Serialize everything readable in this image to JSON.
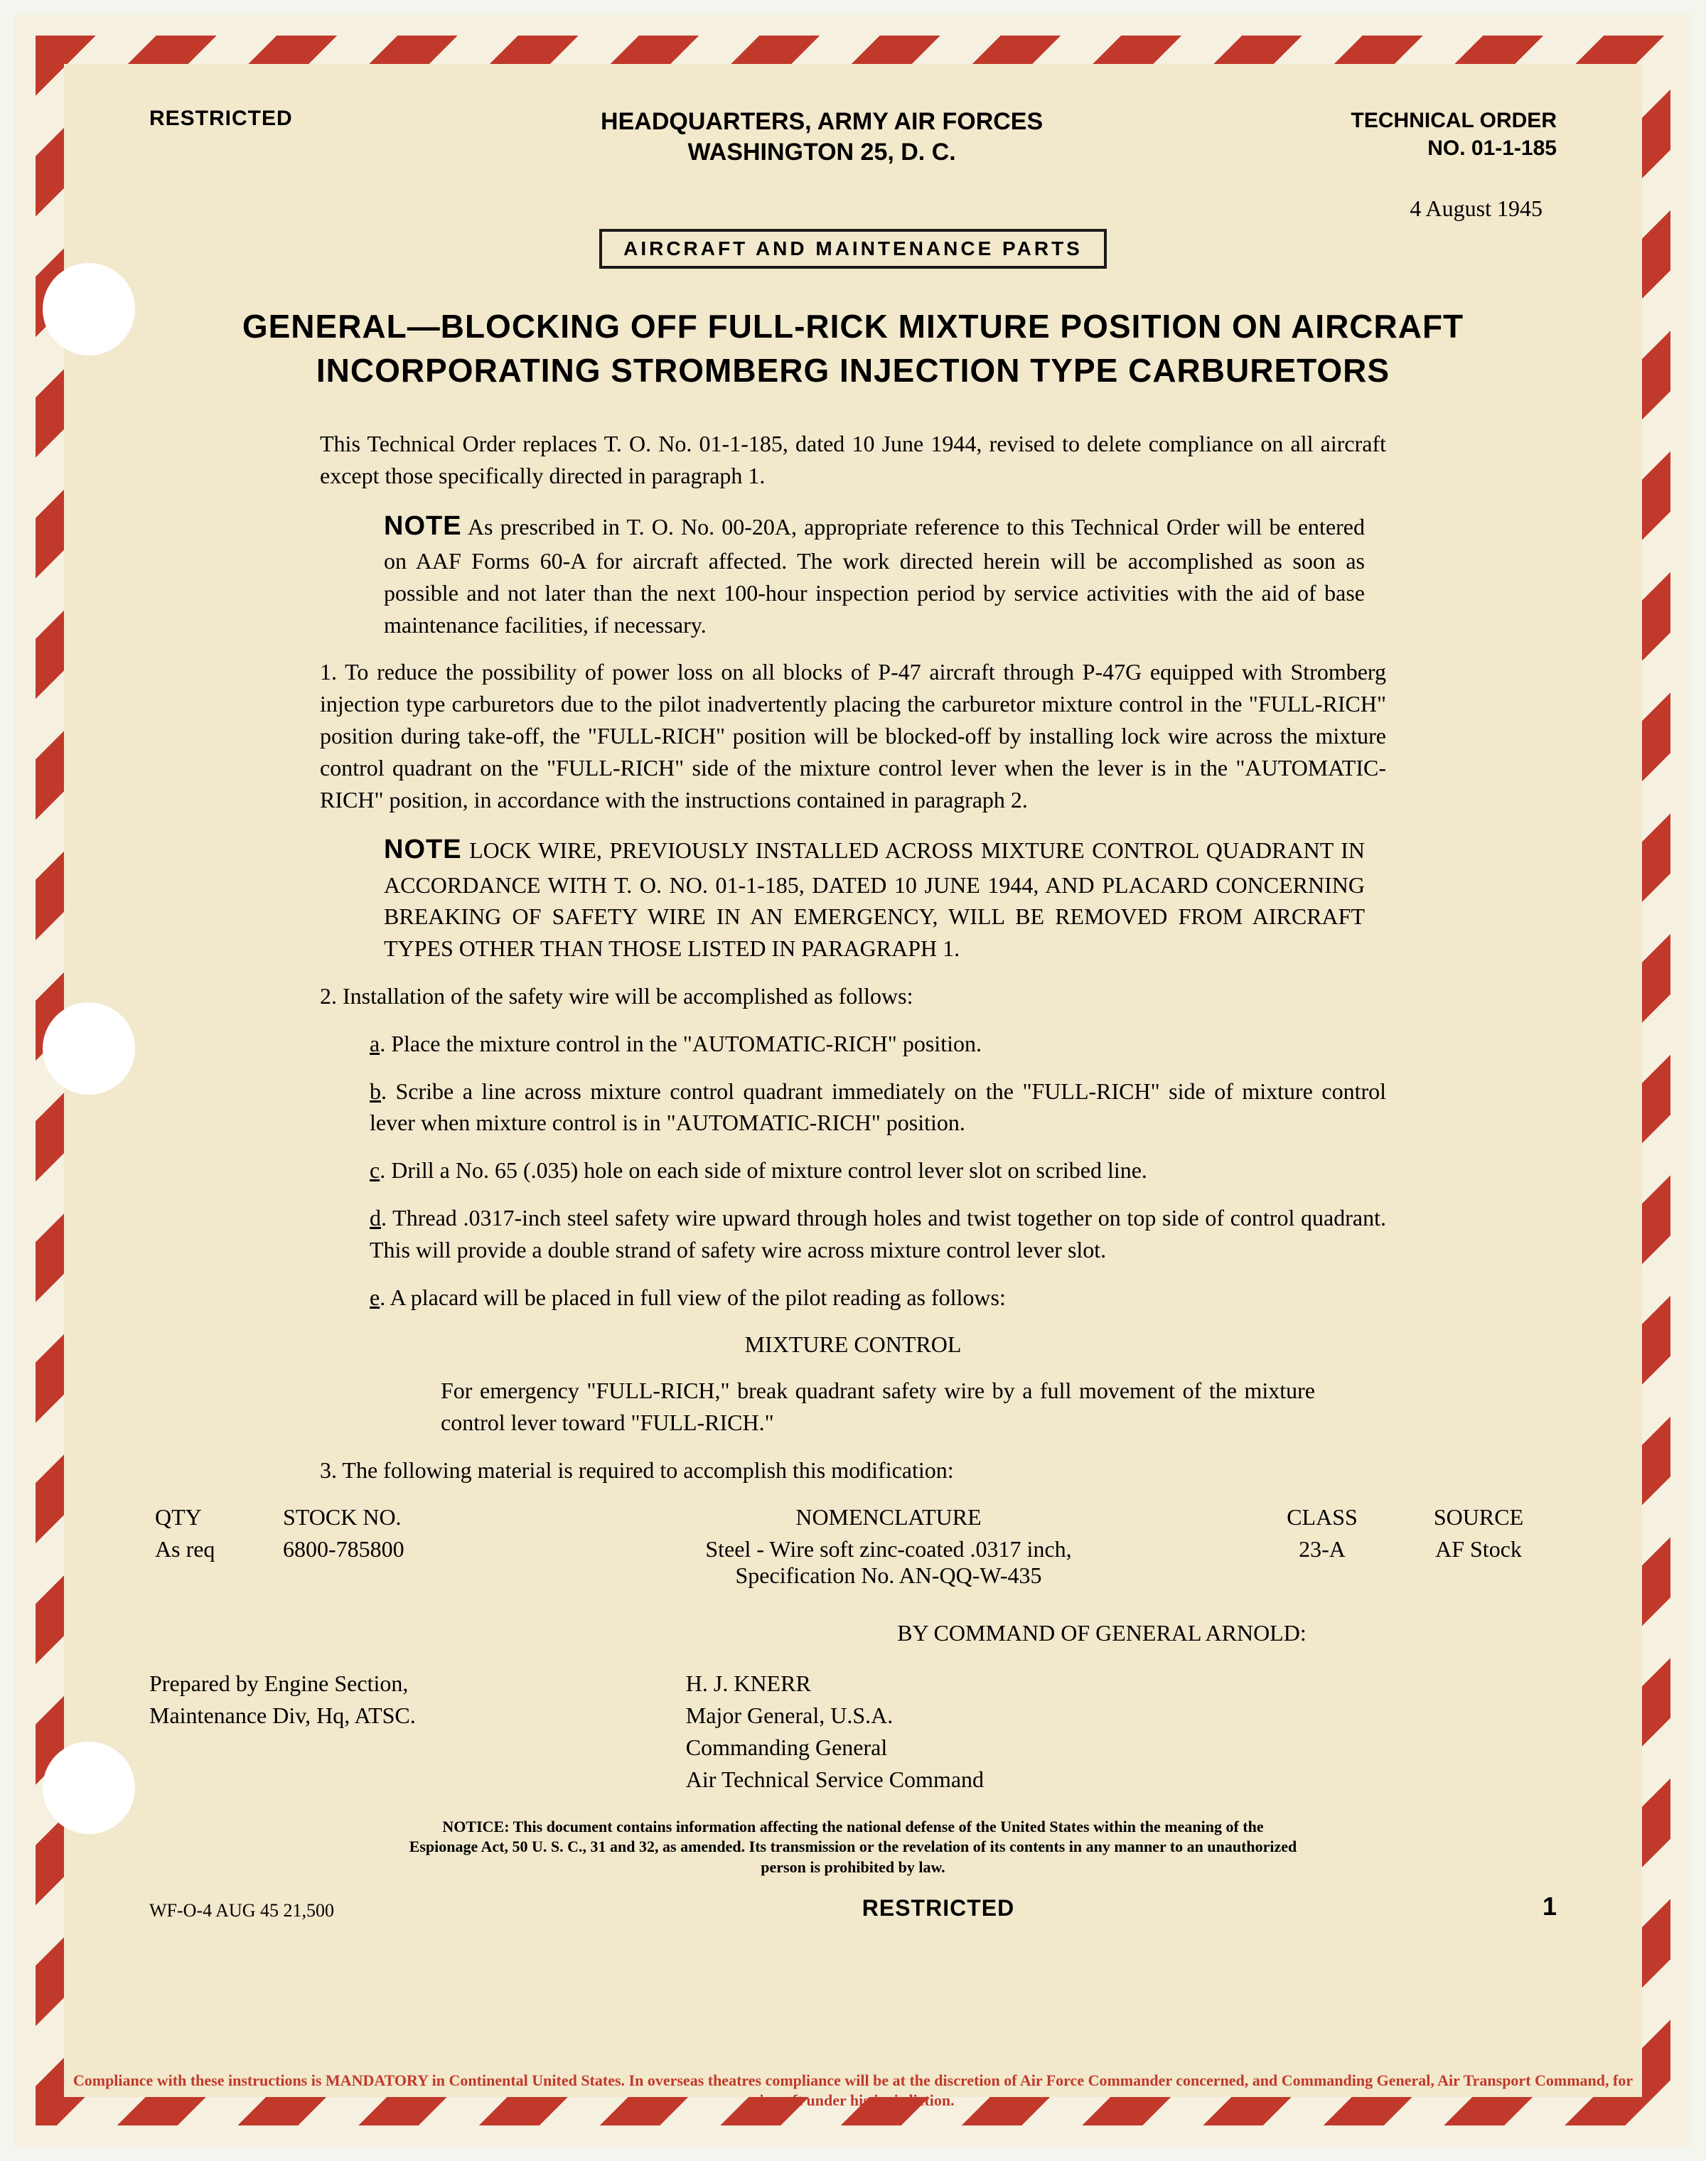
{
  "header": {
    "classification": "RESTRICTED",
    "hq_line1": "HEADQUARTERS, ARMY AIR FORCES",
    "hq_line2": "WASHINGTON 25, D. C.",
    "tech_order_label": "TECHNICAL ORDER",
    "tech_order_no": "NO. 01-1-185",
    "date": "4 August 1945",
    "category": "AIRCRAFT AND MAINTENANCE PARTS"
  },
  "title": {
    "line1": "GENERAL—BLOCKING OFF FULL-RICK MIXTURE POSITION ON AIRCRAFT",
    "line2": "INCORPORATING STROMBERG INJECTION TYPE CARBURETORS"
  },
  "intro": "This Technical Order replaces T. O. No. 01-1-185, dated 10 June 1944, revised to delete compliance on all aircraft except those specifically directed in paragraph 1.",
  "note1_label": "NOTE",
  "note1_text": " As prescribed in T. O. No. 00-20A, appropriate reference to this Technical Order will be entered on AAF Forms 60-A for aircraft affected. The work directed herein will be accomplished as soon as possible and not later than the next 100-hour inspection period by service activities with the aid of base maintenance facilities, if necessary.",
  "para1": "1. To reduce the possibility of power loss on all blocks of P-47 aircraft through P-47G equipped with Stromberg injection type carburetors due to the pilot inadvertently placing the carburetor mixture control in the \"FULL-RICH\" position during take-off, the \"FULL-RICH\" position will be blocked-off by installing lock wire across the mixture control quadrant on the \"FULL-RICH\" side of the mixture control lever when the lever is in the \"AUTOMATIC-RICH\" position, in accordance with the instructions contained in paragraph 2.",
  "note2_label": "NOTE",
  "note2_text": " LOCK WIRE, PREVIOUSLY INSTALLED ACROSS MIXTURE CONTROL QUADRANT IN ACCORDANCE WITH T. O. NO. 01-1-185, DATED 10 JUNE 1944, AND PLACARD CONCERNING BREAKING OF SAFETY WIRE IN AN EMERGENCY, WILL BE REMOVED FROM AIRCRAFT TYPES OTHER THAN THOSE LISTED IN PARAGRAPH 1.",
  "para2": "2. Installation of the safety wire will be accomplished as follows:",
  "step_a": "Place the mixture control in the \"AUTOMATIC-RICH\" position.",
  "step_b": "Scribe a line across mixture control quadrant immediately on the \"FULL-RICH\" side of mixture control lever when mixture control is in \"AUTOMATIC-RICH\" position.",
  "step_c": "Drill a No. 65 (.035) hole on each side of mixture control lever slot on scribed line.",
  "step_d": "Thread .0317-inch steel safety wire upward through holes and twist together on top side of control quadrant. This will provide a double strand of safety wire across mixture control lever slot.",
  "step_e": "A placard will be placed in full view of the pilot reading as follows:",
  "placard_title": "MIXTURE CONTROL",
  "placard_body": "For emergency \"FULL-RICH,\" break quadrant safety wire by a full movement of the mixture control lever toward \"FULL-RICH.\"",
  "para3": "3. The following material is required to accomplish this modification:",
  "table": {
    "headers": {
      "qty": "QTY",
      "stock": "STOCK NO.",
      "nomen": "NOMENCLATURE",
      "class": "CLASS",
      "source": "SOURCE"
    },
    "row": {
      "qty": "As req",
      "stock": "6800-785800",
      "nomen": "Steel - Wire soft zinc-coated .0317 inch,",
      "nomen2": "Specification No. AN-QQ-W-435",
      "class": "23-A",
      "source": "AF Stock"
    }
  },
  "command_line": "BY COMMAND OF GENERAL ARNOLD:",
  "prepared": {
    "line1": "Prepared by Engine Section,",
    "line2": "Maintenance Div, Hq, ATSC."
  },
  "signature": {
    "name": "H. J. KNERR",
    "rank": "Major General, U.S.A.",
    "title1": "Commanding General",
    "title2": "Air Technical Service Command"
  },
  "notice": "NOTICE: This document contains information affecting the national defense of the United States within the meaning of the Espionage Act, 50 U. S. C., 31 and 32, as amended. Its transmission or the revelation of its contents in any manner to an unauthorized person is prohibited by law.",
  "footer": {
    "print_code": "WF-O-4 AUG 45  21,500",
    "classification": "RESTRICTED",
    "page_no": "1"
  },
  "compliance": "Compliance with these instructions is MANDATORY in Continental United States. In overseas theatres compliance will be at the discretion of Air Force Commander concerned, and Commanding General, Air Transport Command, for aircraft under his jurisdiction."
}
